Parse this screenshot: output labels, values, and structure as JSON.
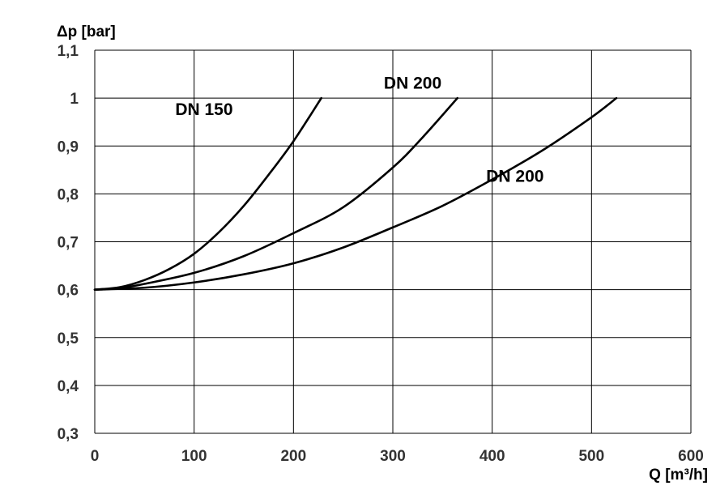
{
  "chart_data": {
    "type": "line",
    "title": "",
    "xlabel": "Q [m³/h]",
    "ylabel": "Δp [bar]",
    "xlim": [
      0,
      600
    ],
    "ylim": [
      0.3,
      1.1
    ],
    "x_ticks": [
      0,
      100,
      200,
      300,
      400,
      500,
      600
    ],
    "x_tick_labels": [
      "0",
      "100",
      "200",
      "300",
      "400",
      "500",
      "600"
    ],
    "y_ticks": [
      0.3,
      0.4,
      0.5,
      0.6,
      0.7,
      0.8,
      0.9,
      1.0,
      1.1
    ],
    "y_tick_labels": [
      "0,3",
      "0,4",
      "0,5",
      "0,6",
      "0,7",
      "0,8",
      "0,9",
      "1",
      "1,1"
    ],
    "grid": true,
    "legend": "none",
    "series": [
      {
        "name": "DN 150",
        "label_at": [
          110,
          0.965
        ],
        "points": [
          [
            0,
            0.6
          ],
          [
            25,
            0.605
          ],
          [
            50,
            0.62
          ],
          [
            75,
            0.643
          ],
          [
            100,
            0.675
          ],
          [
            125,
            0.72
          ],
          [
            150,
            0.775
          ],
          [
            175,
            0.84
          ],
          [
            200,
            0.91
          ],
          [
            228,
            1.0
          ]
        ]
      },
      {
        "name": "DN 200",
        "label_at": [
          320,
          1.02
        ],
        "points": [
          [
            0,
            0.6
          ],
          [
            25,
            0.603
          ],
          [
            50,
            0.612
          ],
          [
            100,
            0.635
          ],
          [
            150,
            0.67
          ],
          [
            200,
            0.718
          ],
          [
            250,
            0.772
          ],
          [
            300,
            0.855
          ],
          [
            330,
            0.918
          ],
          [
            365,
            1.0
          ]
        ]
      },
      {
        "name": "DN 200",
        "label_at": [
          423,
          0.825
        ],
        "points": [
          [
            0,
            0.6
          ],
          [
            50,
            0.604
          ],
          [
            100,
            0.615
          ],
          [
            150,
            0.632
          ],
          [
            200,
            0.655
          ],
          [
            250,
            0.688
          ],
          [
            300,
            0.73
          ],
          [
            350,
            0.775
          ],
          [
            400,
            0.83
          ],
          [
            450,
            0.89
          ],
          [
            500,
            0.96
          ],
          [
            525,
            1.0
          ]
        ]
      }
    ]
  }
}
